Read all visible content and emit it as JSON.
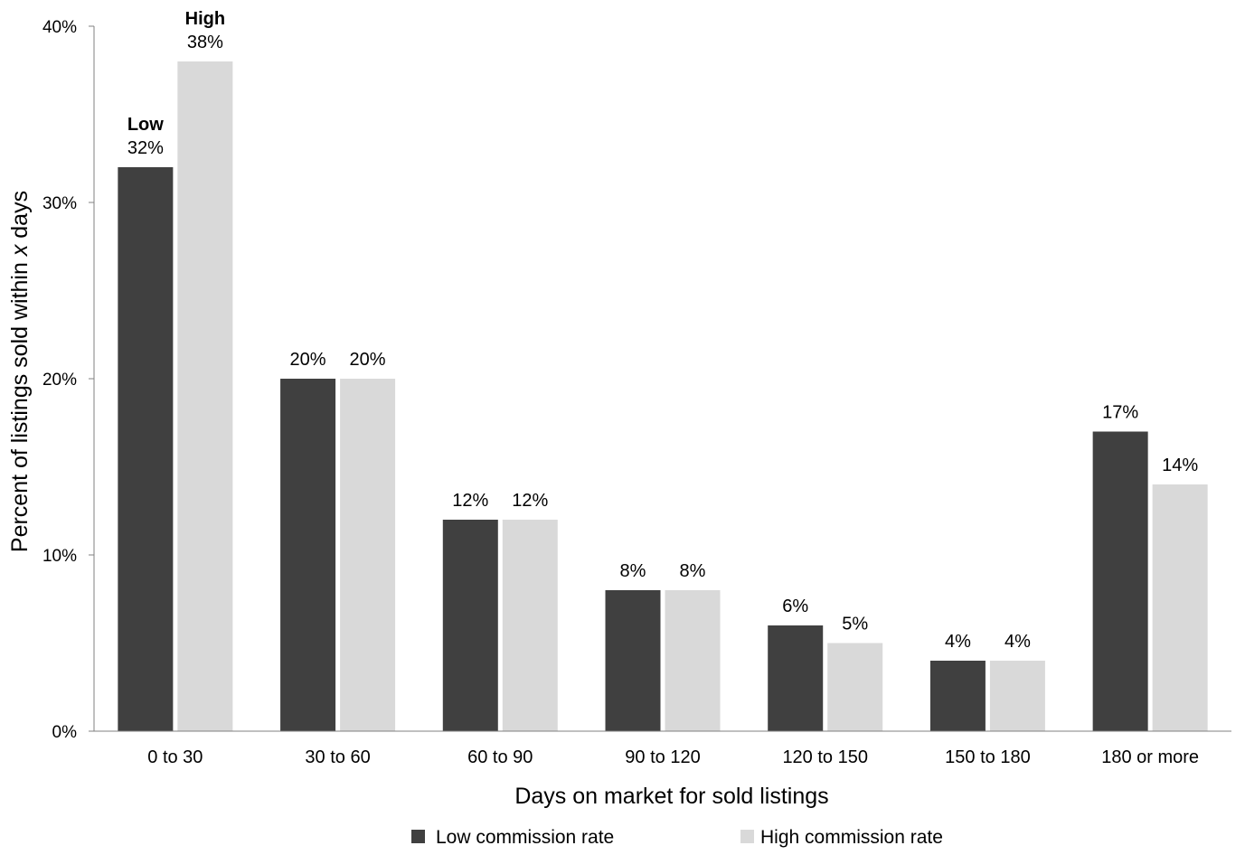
{
  "chart_data": {
    "type": "bar",
    "ylabel_parts": [
      "Percent of listings sold within ",
      "x",
      " days"
    ],
    "xlabel": "Days on market for sold listings",
    "categories": [
      "0 to 30",
      "30 to 60",
      "60 to 90",
      "90 to 120",
      "120 to 150",
      "150 to 180",
      "180 or more"
    ],
    "series": [
      {
        "name": "Low commission rate",
        "tag": "Low",
        "color": "#404040",
        "values": [
          32,
          20,
          12,
          8,
          6,
          4,
          17
        ],
        "labels": [
          "32%",
          "20%",
          "12%",
          "8%",
          "6%",
          "4%",
          "17%"
        ]
      },
      {
        "name": "High commission rate",
        "tag": "High",
        "color": "#d9d9d9",
        "values": [
          38,
          20,
          12,
          8,
          5,
          4,
          14
        ],
        "labels": [
          "38%",
          "20%",
          "12%",
          "8%",
          "5%",
          "4%",
          "14%"
        ]
      }
    ],
    "ylim": [
      0,
      40
    ],
    "yticks": [
      0,
      10,
      20,
      30,
      40
    ],
    "ytick_labels": [
      "0%",
      "10%",
      "20%",
      "30%",
      "40%"
    ],
    "grid": false,
    "legend_position": "bottom-center",
    "axis_color": "#808080"
  }
}
